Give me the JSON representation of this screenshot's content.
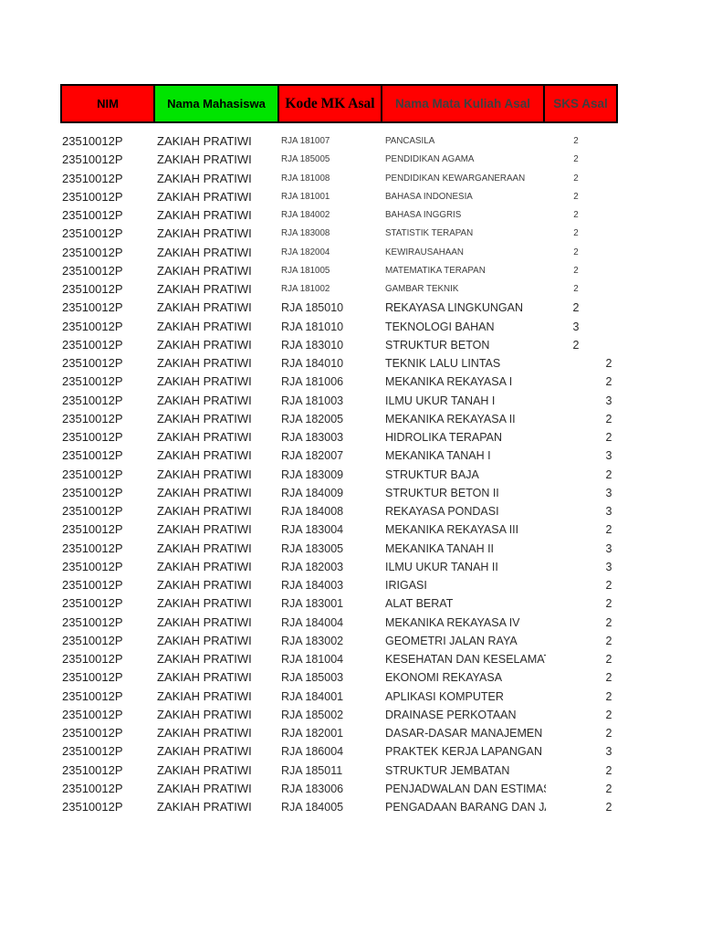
{
  "page": {
    "background": "#ffffff"
  },
  "colors": {
    "header_red": "#ff0000",
    "header_green": "#00e400",
    "cell_border": "#000000",
    "header_text_black": "#000000",
    "header_text_gray": "#3f3f3f",
    "body_text": "#1f1f1f"
  },
  "table": {
    "headers": {
      "nim": "NIM",
      "nama": "Nama Mahasiswa",
      "kode": "Kode MK Asal",
      "mk": "Nama Mata Kuliah Asal",
      "sks": "SKS Asal"
    },
    "rows": [
      {
        "nim": "23510012P",
        "nama": "ZAKIAH PRATIWI",
        "kode": "RJA 181007",
        "mk": "PANCASILA",
        "sks": "2"
      },
      {
        "nim": "23510012P",
        "nama": "ZAKIAH PRATIWI",
        "kode": "RJA 185005",
        "mk": "PENDIDIKAN AGAMA",
        "sks": "2"
      },
      {
        "nim": "23510012P",
        "nama": "ZAKIAH PRATIWI",
        "kode": "RJA 181008",
        "mk": "PENDIDIKAN KEWARGANERAAN",
        "sks": "2"
      },
      {
        "nim": "23510012P",
        "nama": "ZAKIAH PRATIWI",
        "kode": "RJA 181001",
        "mk": "BAHASA INDONESIA",
        "sks": "2"
      },
      {
        "nim": "23510012P",
        "nama": "ZAKIAH PRATIWI",
        "kode": "RJA 184002",
        "mk": "BAHASA INGGRIS",
        "sks": "2"
      },
      {
        "nim": "23510012P",
        "nama": "ZAKIAH PRATIWI",
        "kode": "RJA 183008",
        "mk": "STATISTIK TERAPAN",
        "sks": "2"
      },
      {
        "nim": "23510012P",
        "nama": "ZAKIAH PRATIWI",
        "kode": "RJA 182004",
        "mk": "KEWIRAUSAHAAN",
        "sks": "2"
      },
      {
        "nim": "23510012P",
        "nama": "ZAKIAH PRATIWI",
        "kode": "RJA 181005",
        "mk": "MATEMATIKA TERAPAN",
        "sks": "2"
      },
      {
        "nim": "23510012P",
        "nama": "ZAKIAH PRATIWI",
        "kode": "RJA 181002",
        "mk": "GAMBAR TEKNIK",
        "sks": "2"
      },
      {
        "nim": "23510012P",
        "nama": "ZAKIAH PRATIWI",
        "kode": "RJA 185010",
        "mk": "REKAYASA LINGKUNGAN",
        "sks": "2"
      },
      {
        "nim": "23510012P",
        "nama": "ZAKIAH PRATIWI",
        "kode": "RJA 181010",
        "mk": "TEKNOLOGI BAHAN",
        "sks": "3"
      },
      {
        "nim": "23510012P",
        "nama": "ZAKIAH PRATIWI",
        "kode": "RJA 183010",
        "mk": "STRUKTUR BETON",
        "sks": "2"
      },
      {
        "nim": "23510012P",
        "nama": "ZAKIAH PRATIWI",
        "kode": "RJA 184010",
        "mk": "TEKNIK LALU LINTAS",
        "sks": "2"
      },
      {
        "nim": "23510012P",
        "nama": "ZAKIAH PRATIWI",
        "kode": "RJA 181006",
        "mk": "MEKANIKA REKAYASA I",
        "sks": "2"
      },
      {
        "nim": "23510012P",
        "nama": "ZAKIAH PRATIWI",
        "kode": "RJA 181003",
        "mk": "ILMU UKUR TANAH I",
        "sks": "3"
      },
      {
        "nim": "23510012P",
        "nama": "ZAKIAH PRATIWI",
        "kode": "RJA 182005",
        "mk": "MEKANIKA REKAYASA II",
        "sks": "2"
      },
      {
        "nim": "23510012P",
        "nama": "ZAKIAH PRATIWI",
        "kode": "RJA 183003",
        "mk": "HIDROLIKA TERAPAN",
        "sks": "2"
      },
      {
        "nim": "23510012P",
        "nama": "ZAKIAH PRATIWI",
        "kode": "RJA 182007",
        "mk": "MEKANIKA TANAH I",
        "sks": "3"
      },
      {
        "nim": "23510012P",
        "nama": "ZAKIAH PRATIWI",
        "kode": "RJA 183009",
        "mk": "STRUKTUR BAJA",
        "sks": "2"
      },
      {
        "nim": "23510012P",
        "nama": "ZAKIAH PRATIWI",
        "kode": "RJA 184009",
        "mk": "STRUKTUR BETON II",
        "sks": "3"
      },
      {
        "nim": "23510012P",
        "nama": "ZAKIAH PRATIWI",
        "kode": "RJA 184008",
        "mk": "REKAYASA PONDASI",
        "sks": "3"
      },
      {
        "nim": "23510012P",
        "nama": "ZAKIAH PRATIWI",
        "kode": "RJA 183004",
        "mk": "MEKANIKA REKAYASA III",
        "sks": "2"
      },
      {
        "nim": "23510012P",
        "nama": "ZAKIAH PRATIWI",
        "kode": "RJA 183005",
        "mk": "MEKANIKA TANAH II",
        "sks": "3"
      },
      {
        "nim": "23510012P",
        "nama": "ZAKIAH PRATIWI",
        "kode": "RJA 182003",
        "mk": "ILMU UKUR TANAH II",
        "sks": "3"
      },
      {
        "nim": "23510012P",
        "nama": "ZAKIAH PRATIWI",
        "kode": "RJA 184003",
        "mk": "IRIGASI",
        "sks": "2"
      },
      {
        "nim": "23510012P",
        "nama": "ZAKIAH PRATIWI",
        "kode": "RJA 183001",
        "mk": "ALAT BERAT",
        "sks": "2"
      },
      {
        "nim": "23510012P",
        "nama": "ZAKIAH PRATIWI",
        "kode": "RJA 184004",
        "mk": "MEKANIKA REKAYASA IV",
        "sks": "2"
      },
      {
        "nim": "23510012P",
        "nama": "ZAKIAH PRATIWI",
        "kode": "RJA 183002",
        "mk": "GEOMETRI JALAN RAYA",
        "sks": "2"
      },
      {
        "nim": "23510012P",
        "nama": "ZAKIAH PRATIWI",
        "kode": "RJA 181004",
        "mk": "KESEHATAN DAN KESELAMATA",
        "sks": "2"
      },
      {
        "nim": "23510012P",
        "nama": "ZAKIAH PRATIWI",
        "kode": "RJA 185003",
        "mk": "EKONOMI REKAYASA",
        "sks": "2"
      },
      {
        "nim": "23510012P",
        "nama": "ZAKIAH PRATIWI",
        "kode": "RJA 184001",
        "mk": "APLIKASI KOMPUTER",
        "sks": "2"
      },
      {
        "nim": "23510012P",
        "nama": "ZAKIAH PRATIWI",
        "kode": "RJA 185002",
        "mk": "DRAINASE PERKOTAAN",
        "sks": "2"
      },
      {
        "nim": "23510012P",
        "nama": "ZAKIAH PRATIWI",
        "kode": "RJA 182001",
        "mk": "DASAR-DASAR MANAJEMEN KO",
        "sks": "2"
      },
      {
        "nim": "23510012P",
        "nama": "ZAKIAH PRATIWI",
        "kode": "RJA 186004",
        "mk": "PRAKTEK KERJA LAPANGAN",
        "sks": "3"
      },
      {
        "nim": "23510012P",
        "nama": "ZAKIAH PRATIWI",
        "kode": "RJA 185011",
        "mk": "STRUKTUR JEMBATAN",
        "sks": "2"
      },
      {
        "nim": "23510012P",
        "nama": "ZAKIAH PRATIWI",
        "kode": "RJA 183006",
        "mk": "PENJADWALAN DAN ESTIMASI",
        "sks": "2"
      },
      {
        "nim": "23510012P",
        "nama": "ZAKIAH PRATIWI",
        "kode": "RJA 184005",
        "mk": "PENGADAAN BARANG DAN JAS",
        "sks": "2"
      }
    ]
  }
}
